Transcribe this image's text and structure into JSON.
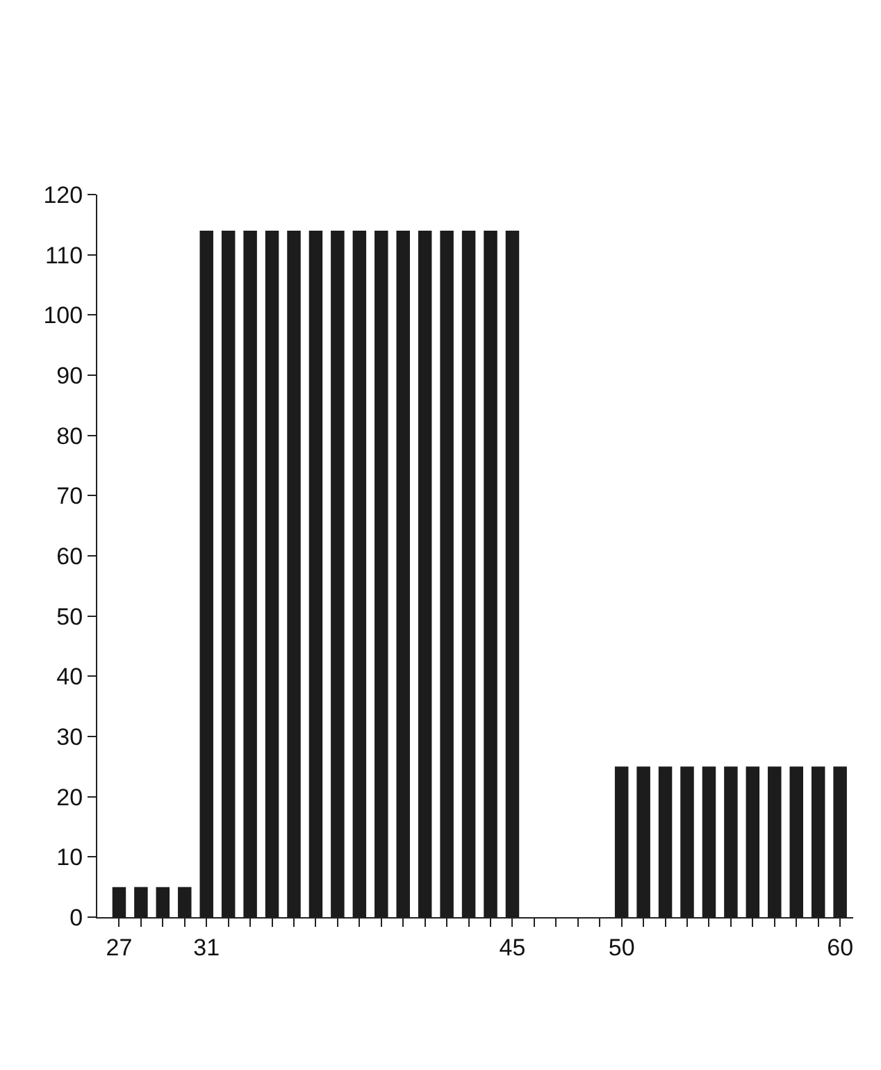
{
  "chart_data": {
    "type": "bar",
    "color": "#1c1c1c",
    "x": [
      27,
      28,
      29,
      30,
      31,
      32,
      33,
      34,
      35,
      36,
      37,
      38,
      39,
      40,
      41,
      42,
      43,
      44,
      45,
      46,
      47,
      48,
      49,
      50,
      51,
      52,
      53,
      54,
      55,
      56,
      57,
      58,
      59,
      60
    ],
    "values": [
      5,
      5,
      5,
      5,
      114,
      114,
      114,
      114,
      114,
      114,
      114,
      114,
      114,
      114,
      114,
      114,
      114,
      114,
      114,
      null,
      null,
      null,
      null,
      25,
      25,
      25,
      25,
      25,
      25,
      25,
      25,
      25,
      25,
      25
    ],
    "xlim": [
      26,
      60.6
    ],
    "ylim": [
      0,
      120
    ],
    "xticks": [
      27,
      {
        "value": 28,
        "label": null
      },
      {
        "value": 29,
        "label": null
      },
      {
        "value": 30,
        "label": null
      },
      31,
      {
        "value": 32,
        "label": null
      },
      {
        "value": 33,
        "label": null
      },
      {
        "value": 34,
        "label": null
      },
      {
        "value": 35,
        "label": null
      },
      {
        "value": 36,
        "label": null
      },
      {
        "value": 37,
        "label": null
      },
      {
        "value": 38,
        "label": null
      },
      {
        "value": 39,
        "label": null
      },
      {
        "value": 40,
        "label": null
      },
      {
        "value": 41,
        "label": null
      },
      {
        "value": 42,
        "label": null
      },
      {
        "value": 43,
        "label": null
      },
      {
        "value": 44,
        "label": null
      },
      45,
      {
        "value": 46,
        "label": null
      },
      {
        "value": 47,
        "label": null
      },
      {
        "value": 48,
        "label": null
      },
      {
        "value": 49,
        "label": null
      },
      50,
      {
        "value": 51,
        "label": null
      },
      {
        "value": 52,
        "label": null
      },
      {
        "value": 53,
        "label": null
      },
      {
        "value": 54,
        "label": null
      },
      {
        "value": 55,
        "label": null
      },
      {
        "value": 56,
        "label": null
      },
      {
        "value": 57,
        "label": null
      },
      {
        "value": 58,
        "label": null
      },
      {
        "value": 59,
        "label": null
      },
      60
    ],
    "yticks": [
      0,
      10,
      20,
      30,
      40,
      50,
      60,
      70,
      80,
      90,
      100,
      110,
      120
    ]
  }
}
